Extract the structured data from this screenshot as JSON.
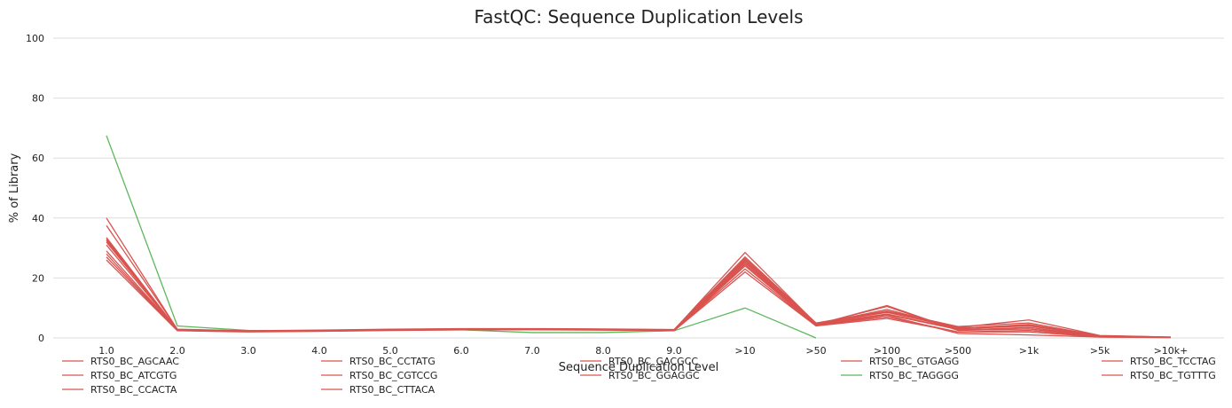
{
  "chart_data": {
    "type": "line",
    "title": "FastQC: Sequence Duplication Levels",
    "xlabel": "Sequence Duplication Level",
    "ylabel": "% of Library",
    "categories": [
      "1.0",
      "2.0",
      "3.0",
      "4.0",
      "5.0",
      "6.0",
      "7.0",
      "8.0",
      "9.0",
      ">10",
      ">50",
      ">100",
      ">500",
      ">1k",
      ">5k",
      ">10k+"
    ],
    "yticks": [
      "0",
      "20",
      "40",
      "60",
      "80",
      "100"
    ],
    "ylim": [
      0,
      100
    ],
    "grid": true,
    "legend_position": "bottom",
    "series": [
      {
        "name": "RTS0_BC_AGCAAC",
        "color": "#d9534f",
        "values": [
          40.0,
          2.8,
          2.3,
          2.5,
          2.8,
          3.0,
          3.0,
          2.9,
          2.7,
          28.5,
          4.8,
          8.5,
          3.5,
          6.0,
          0.8,
          0.3
        ]
      },
      {
        "name": "RTS0_BC_ATCGTG",
        "color": "#d9534f",
        "values": [
          33.0,
          2.6,
          2.2,
          2.4,
          2.7,
          2.9,
          2.9,
          2.8,
          2.6,
          25.0,
          4.5,
          10.5,
          2.5,
          3.0,
          0.5,
          0.2
        ]
      },
      {
        "name": "RTS0_BC_CCACTA",
        "color": "#d9534f",
        "values": [
          28.0,
          2.5,
          2.1,
          2.3,
          2.6,
          2.8,
          2.8,
          2.7,
          2.5,
          24.0,
          4.2,
          7.0,
          2.0,
          2.5,
          0.4,
          0.2
        ]
      },
      {
        "name": "RTS0_BC_CCTATG",
        "color": "#d9534f",
        "values": [
          32.0,
          2.7,
          2.2,
          2.4,
          2.7,
          2.9,
          2.9,
          2.8,
          2.6,
          26.0,
          4.6,
          8.0,
          3.0,
          4.0,
          0.6,
          0.2
        ]
      },
      {
        "name": "RTS0_BC_CGTCCG",
        "color": "#d9534f",
        "values": [
          26.0,
          2.4,
          2.0,
          2.2,
          2.5,
          2.7,
          2.7,
          2.6,
          2.4,
          22.0,
          4.0,
          6.5,
          2.0,
          2.0,
          0.3,
          0.1
        ]
      },
      {
        "name": "RTS0_BC_CTTACA",
        "color": "#d9534f",
        "values": [
          37.5,
          2.9,
          2.4,
          2.6,
          2.9,
          3.1,
          3.1,
          3.0,
          2.8,
          27.0,
          5.0,
          9.0,
          3.8,
          5.0,
          0.7,
          0.3
        ]
      },
      {
        "name": "RTS0_BC_GACGCC",
        "color": "#d9534f",
        "values": [
          31.0,
          2.6,
          2.1,
          2.4,
          2.6,
          2.8,
          2.8,
          2.7,
          2.6,
          25.5,
          4.4,
          10.8,
          2.6,
          3.5,
          0.5,
          0.2
        ]
      },
      {
        "name": "RTS0_BC_GGAGGC",
        "color": "#d9534f",
        "values": [
          27.0,
          2.5,
          2.1,
          2.3,
          2.6,
          2.8,
          2.8,
          2.7,
          2.5,
          23.0,
          4.1,
          7.5,
          1.5,
          1.0,
          0.3,
          0.1
        ]
      },
      {
        "name": "RTS0_BC_GTGAGG",
        "color": "#d9534f",
        "values": [
          33.5,
          2.7,
          2.3,
          2.5,
          2.8,
          3.0,
          3.0,
          2.9,
          2.7,
          26.5,
          4.7,
          8.8,
          3.2,
          4.5,
          0.6,
          0.2
        ]
      },
      {
        "name": "RTS0_BC_TAGGGG",
        "color": "#5cb85c",
        "values": [
          67.5,
          4.0,
          2.5,
          2.4,
          2.6,
          2.7,
          1.8,
          1.8,
          2.4,
          10.0,
          0.0,
          null,
          null,
          null,
          null,
          null
        ]
      },
      {
        "name": "RTS0_BC_TCCTAG",
        "color": "#d9534f",
        "values": [
          29.0,
          2.6,
          2.2,
          2.4,
          2.7,
          2.9,
          2.9,
          2.8,
          2.6,
          24.5,
          4.3,
          7.8,
          2.8,
          3.0,
          0.5,
          0.2
        ]
      },
      {
        "name": "RTS0_BC_TGTTTG",
        "color": "#d9534f",
        "values": [
          32.5,
          2.7,
          2.2,
          2.4,
          2.7,
          2.9,
          2.9,
          2.8,
          2.6,
          25.8,
          4.6,
          9.5,
          3.3,
          4.2,
          0.6,
          0.2
        ]
      }
    ]
  }
}
